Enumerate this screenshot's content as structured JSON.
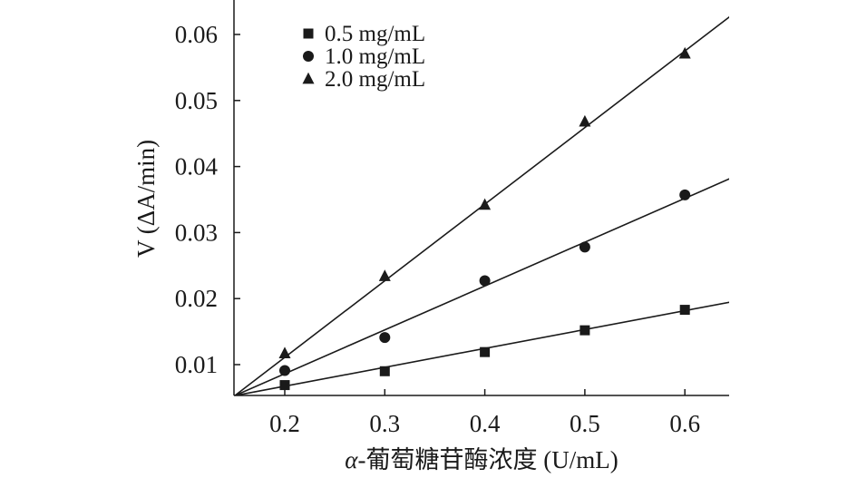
{
  "chart_data": {
    "type": "scatter",
    "title": "",
    "xlabel_prefix": "α",
    "xlabel_rest": "-葡萄糖苷酶浓度 (U/mL)",
    "ylabel": "V (ΔA/min)",
    "xlim": [
      0.15,
      0.65
    ],
    "ylim": [
      0.0,
      0.066
    ],
    "x_ticks": [
      0.2,
      0.3,
      0.4,
      0.5,
      0.6
    ],
    "x_tick_labels": [
      "0.2",
      "0.3",
      "0.4",
      "0.5",
      "0.6"
    ],
    "y_ticks": [
      0.01,
      0.02,
      0.03,
      0.04,
      0.05,
      0.06
    ],
    "y_tick_labels": [
      "0.01",
      "0.02",
      "0.03",
      "0.04",
      "0.05",
      "0.06"
    ],
    "grid": false,
    "legend_position": "top-left",
    "series": [
      {
        "name": "0.5 mg/mL",
        "marker": "square",
        "x": [
          0.2,
          0.3,
          0.4,
          0.5,
          0.6
        ],
        "y": [
          0.0069,
          0.009,
          0.0119,
          0.0152,
          0.0183
        ],
        "fit": {
          "x": [
            0.15,
            0.65
          ],
          "y": [
            0.0053,
            0.0196
          ]
        }
      },
      {
        "name": "1.0 mg/mL",
        "marker": "circle",
        "x": [
          0.2,
          0.3,
          0.4,
          0.5,
          0.6
        ],
        "y": [
          0.0091,
          0.0141,
          0.0227,
          0.0278,
          0.0357
        ],
        "fit": {
          "x": [
            0.15,
            0.65
          ],
          "y": [
            0.0053,
            0.0385
          ]
        }
      },
      {
        "name": "2.0 mg/mL",
        "marker": "triangle",
        "x": [
          0.2,
          0.3,
          0.4,
          0.5,
          0.6
        ],
        "y": [
          0.0117,
          0.0234,
          0.0342,
          0.0468,
          0.0571
        ],
        "fit": {
          "x": [
            0.15,
            0.65
          ],
          "y": [
            0.0053,
            0.0633
          ]
        }
      }
    ],
    "colors": {
      "ink": "#1a1a1a",
      "background": "#ffffff"
    }
  }
}
